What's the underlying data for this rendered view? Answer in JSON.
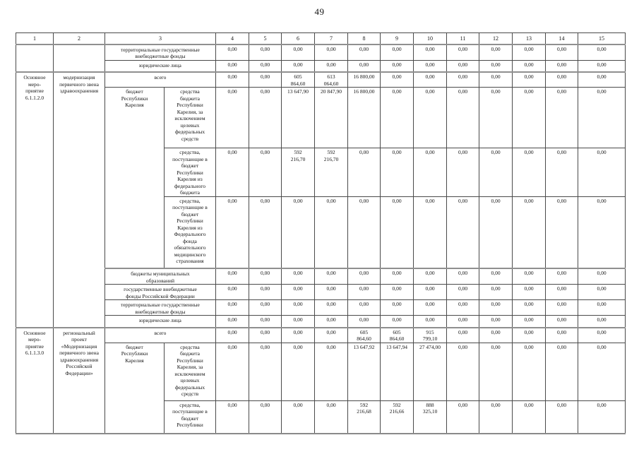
{
  "page": {
    "number": "49"
  },
  "table": {
    "header": [
      {
        "t": "1"
      },
      {
        "t": "2"
      },
      {
        "t": "3",
        "cs": 2
      },
      {
        "t": "4"
      },
      {
        "t": "5"
      },
      {
        "t": "6"
      },
      {
        "t": "7"
      },
      {
        "t": "8"
      },
      {
        "t": "9"
      },
      {
        "t": "10"
      },
      {
        "t": "11"
      },
      {
        "t": "12"
      },
      {
        "t": "13"
      },
      {
        "t": "14"
      },
      {
        "t": "15"
      }
    ],
    "rows": [
      {
        "sep": false,
        "cells": [
          {
            "t": "",
            "cls": "c1",
            "rs": 2
          },
          {
            "t": "",
            "cls": "c2",
            "rs": 2
          },
          {
            "t": "территориальные государственные\nвнебюджетные фонды",
            "cs": 2,
            "cls": "lblw"
          },
          "0,00",
          "0,00",
          "0,00",
          "0,00",
          "0,00",
          "0,00",
          "0,00",
          "0,00",
          "0,00",
          "0,00",
          "0,00",
          "0,00"
        ]
      },
      {
        "sep": false,
        "cells": [
          {
            "t": "юридические лица",
            "cs": 2,
            "cls": "lblw"
          },
          "0,00",
          "0,00",
          "0,00",
          "0,00",
          "0,00",
          "0,00",
          "0,00",
          "0,00",
          "0,00",
          "0,00",
          "0,00",
          "0,00"
        ]
      },
      {
        "sep": true,
        "cells": [
          {
            "t": "Основное\nмеро-\nприятие\n6.1.1.2.0",
            "cls": "c1",
            "rs": 8
          },
          {
            "t": "модернизация\nпервичного звена\nздравоохранения",
            "cls": "c2",
            "rs": 8
          },
          {
            "t": "всего",
            "cs": 2,
            "cls": "lblw"
          },
          "0,00",
          "0,00",
          "605\n864,60",
          "613\n064,60",
          "16 800,00",
          "0,00",
          "0,00",
          "0,00",
          "0,00",
          "0,00",
          "0,00",
          "0,00"
        ]
      },
      {
        "sep": false,
        "cells": [
          {
            "t": "бюджет\nРеспублики\nКарелия",
            "rs": 3
          },
          {
            "t": "средства\nбюджета\nРеспублики\nКарелия, за\nисключением\nцелевых\nфедеральных\nсредств"
          },
          "0,00",
          "0,00",
          "13 647,90",
          "20 847,90",
          "16 800,00",
          "0,00",
          "0,00",
          "0,00",
          "0,00",
          "0,00",
          "0,00",
          "0,00"
        ]
      },
      {
        "sep": false,
        "cells": [
          {
            "t": "средства,\nпоступающие в\nбюджет\nРеспублики\nКарелия из\nфедерального\nбюджета"
          },
          "0,00",
          "0,00",
          "592\n216,70",
          "592\n216,70",
          "0,00",
          "0,00",
          "0,00",
          "0,00",
          "0,00",
          "0,00",
          "0,00",
          "0,00"
        ]
      },
      {
        "sep": false,
        "cells": [
          {
            "t": "средства,\nпоступающие в\nбюджет\nРеспублики\nКарелия из\nФедерального\nфонда\nобязательного\nмедицинского\nстрахования"
          },
          "0,00",
          "0,00",
          "0,00",
          "0,00",
          "0,00",
          "0,00",
          "0,00",
          "0,00",
          "0,00",
          "0,00",
          "0,00",
          "0,00"
        ]
      },
      {
        "sep": true,
        "cells": [
          {
            "t": "бюджеты муниципальных\nобразований",
            "cs": 2,
            "cls": "lblw"
          },
          "0,00",
          "0,00",
          "0,00",
          "0,00",
          "0,00",
          "0,00",
          "0,00",
          "0,00",
          "0,00",
          "0,00",
          "0,00",
          "0,00"
        ]
      },
      {
        "sep": false,
        "cells": [
          {
            "t": "государственные внебюджетные\nфонды Российской Федерации",
            "cs": 2,
            "cls": "lblw"
          },
          "0,00",
          "0,00",
          "0,00",
          "0,00",
          "0,00",
          "0,00",
          "0,00",
          "0,00",
          "0,00",
          "0,00",
          "0,00",
          "0,00"
        ]
      },
      {
        "sep": false,
        "cells": [
          {
            "t": "территориальные государственные\nвнебюджетные фонды",
            "cs": 2,
            "cls": "lblw"
          },
          "0,00",
          "0,00",
          "0,00",
          "0,00",
          "0,00",
          "0,00",
          "0,00",
          "0,00",
          "0,00",
          "0,00",
          "0,00",
          "0,00"
        ]
      },
      {
        "sep": false,
        "cells": [
          {
            "t": "юридические лица",
            "cs": 2,
            "cls": "lblw"
          },
          "0,00",
          "0,00",
          "0,00",
          "0,00",
          "0,00",
          "0,00",
          "0,00",
          "0,00",
          "0,00",
          "0,00",
          "0,00",
          "0,00"
        ]
      },
      {
        "sep": true,
        "cells": [
          {
            "t": "Основное\nмеро-\nприятие\n6.1.1.3.0",
            "cls": "c1",
            "rs": 3
          },
          {
            "t": "региональный\nпроект\n«Модернизация\nпервичного звена\nздравоохранения\nРоссийской\nФедерации»",
            "cls": "c2",
            "rs": 3
          },
          {
            "t": "всего",
            "cs": 2,
            "cls": "lblw"
          },
          "0,00",
          "0,00",
          "0,00",
          "0,00",
          "605\n864,60",
          "605\n864,60",
          "915\n799,10",
          "0,00",
          "0,00",
          "0,00",
          "0,00",
          "0,00"
        ]
      },
      {
        "sep": false,
        "cells": [
          {
            "t": "бюджет\nРеспублики\nКарелия",
            "rs": 2
          },
          {
            "t": "средства\nбюджета\nРеспублики\nКарелия, за\nисключением\nцелевых\nфедеральных\nсредств"
          },
          "0,00",
          "0,00",
          "0,00",
          "0,00",
          "13 647,92",
          "13 647,94",
          "27 474,00",
          "0,00",
          "0,00",
          "0,00",
          "0,00",
          "0,00"
        ]
      },
      {
        "sep": false,
        "cells": [
          {
            "t": "средства,\nпоступающие в\nбюджет\nРеспублики"
          },
          "0,00",
          "0,00",
          "0,00",
          "0,00",
          "592\n216,68",
          "592\n216,66",
          "888\n325,10",
          "0,00",
          "0,00",
          "0,00",
          "0,00",
          "0,00"
        ]
      }
    ]
  }
}
